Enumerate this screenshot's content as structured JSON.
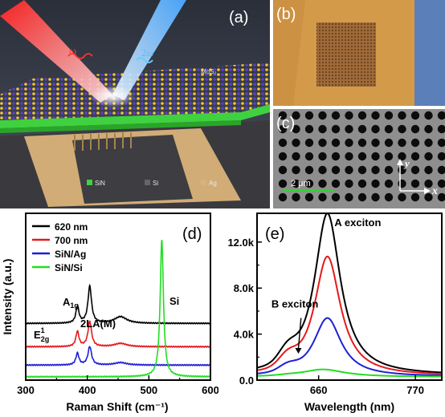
{
  "panel_a": {
    "label": "(a)",
    "omega_label": "ω",
    "two_omega_label": "2ω",
    "mos2_label": "MoS₂",
    "legend": [
      {
        "name": "SiN",
        "color": "#3fd13f"
      },
      {
        "name": "Si",
        "color": "#555555"
      },
      {
        "name": "Ag",
        "color": "#d9b27a"
      }
    ]
  },
  "panel_b": {
    "label": "(b)"
  },
  "panel_c": {
    "label": "(c)",
    "scale_label": "2 μm",
    "axis_y": "y",
    "axis_x": "x"
  },
  "panel_d": {
    "label": "(d)"
  },
  "panel_e": {
    "label": "(e)"
  },
  "chart_data": [
    {
      "type": "line",
      "panel": "(d)",
      "xlabel": "Raman Shift (cm⁻¹)",
      "ylabel": "Intensity (a.u.)",
      "xlim": [
        300,
        600
      ],
      "xticks": [
        300,
        400,
        500,
        600
      ],
      "legend_position": "top-left",
      "annotations": [
        {
          "text": "E¹₂g",
          "x": 384
        },
        {
          "text": "A₁g",
          "x": 406
        },
        {
          "text": "2LA(M)",
          "x": 454
        },
        {
          "text": "Si",
          "x": 521
        }
      ],
      "series": [
        {
          "name": "620 nm",
          "color": "#000000",
          "baseline": 0.34,
          "peaks": [
            {
              "x": 384,
              "h": 0.1,
              "w": 3
            },
            {
              "x": 404,
              "h": 0.22,
              "w": 3.5
            },
            {
              "x": 454,
              "h": 0.04,
              "w": 12
            }
          ]
        },
        {
          "name": "700 nm",
          "color": "#e41a1c",
          "baseline": 0.2,
          "peaks": [
            {
              "x": 384,
              "h": 0.09,
              "w": 3
            },
            {
              "x": 404,
              "h": 0.15,
              "w": 3.5
            },
            {
              "x": 454,
              "h": 0.02,
              "w": 12
            }
          ]
        },
        {
          "name": "SiN/Ag",
          "color": "#1f1fd6",
          "baseline": 0.09,
          "peaks": [
            {
              "x": 384,
              "h": 0.07,
              "w": 3
            },
            {
              "x": 404,
              "h": 0.11,
              "w": 3.5
            },
            {
              "x": 454,
              "h": 0.015,
              "w": 12
            }
          ]
        },
        {
          "name": "SiN/Si",
          "color": "#22dd22",
          "baseline": 0.02,
          "peaks": [
            {
              "x": 521,
              "h": 0.82,
              "w": 3.2
            }
          ]
        }
      ]
    },
    {
      "type": "line",
      "panel": "(e)",
      "xlabel": "Wavelength (nm)",
      "ylabel": "",
      "xlim": [
        590,
        800
      ],
      "ylim": [
        0,
        14500
      ],
      "xticks": [
        660,
        770
      ],
      "yticks": [
        0,
        4000,
        8000,
        12000
      ],
      "yticklabels": [
        "0.0",
        "4.0k",
        "8.0k",
        "12.0k"
      ],
      "annotations": [
        {
          "text": "A exciton",
          "x": 678,
          "y": 13400
        },
        {
          "text": "B exciton",
          "x": 633,
          "y": 6300
        },
        {
          "text": "",
          "arrow_from": [
            640,
            5400
          ],
          "arrow_to": [
            637,
            2300
          ]
        }
      ],
      "series": [
        {
          "name": "",
          "color": "#000000",
          "peak_x": 670,
          "peak_y": 14100,
          "width": 18,
          "shoulder_x": 625,
          "shoulder_y": 1100,
          "base": 400
        },
        {
          "name": "",
          "color": "#e41a1c",
          "peak_x": 670,
          "peak_y": 10400,
          "width": 18,
          "shoulder_x": 625,
          "shoulder_y": 900,
          "base": 350
        },
        {
          "name": "",
          "color": "#1f1fd6",
          "peak_x": 670,
          "peak_y": 5100,
          "width": 19,
          "shoulder_x": 625,
          "shoulder_y": 500,
          "base": 300
        },
        {
          "name": "",
          "color": "#22dd22",
          "peak_x": 665,
          "peak_y": 650,
          "width": 30,
          "shoulder_x": 625,
          "shoulder_y": 50,
          "base": 280
        }
      ]
    }
  ]
}
